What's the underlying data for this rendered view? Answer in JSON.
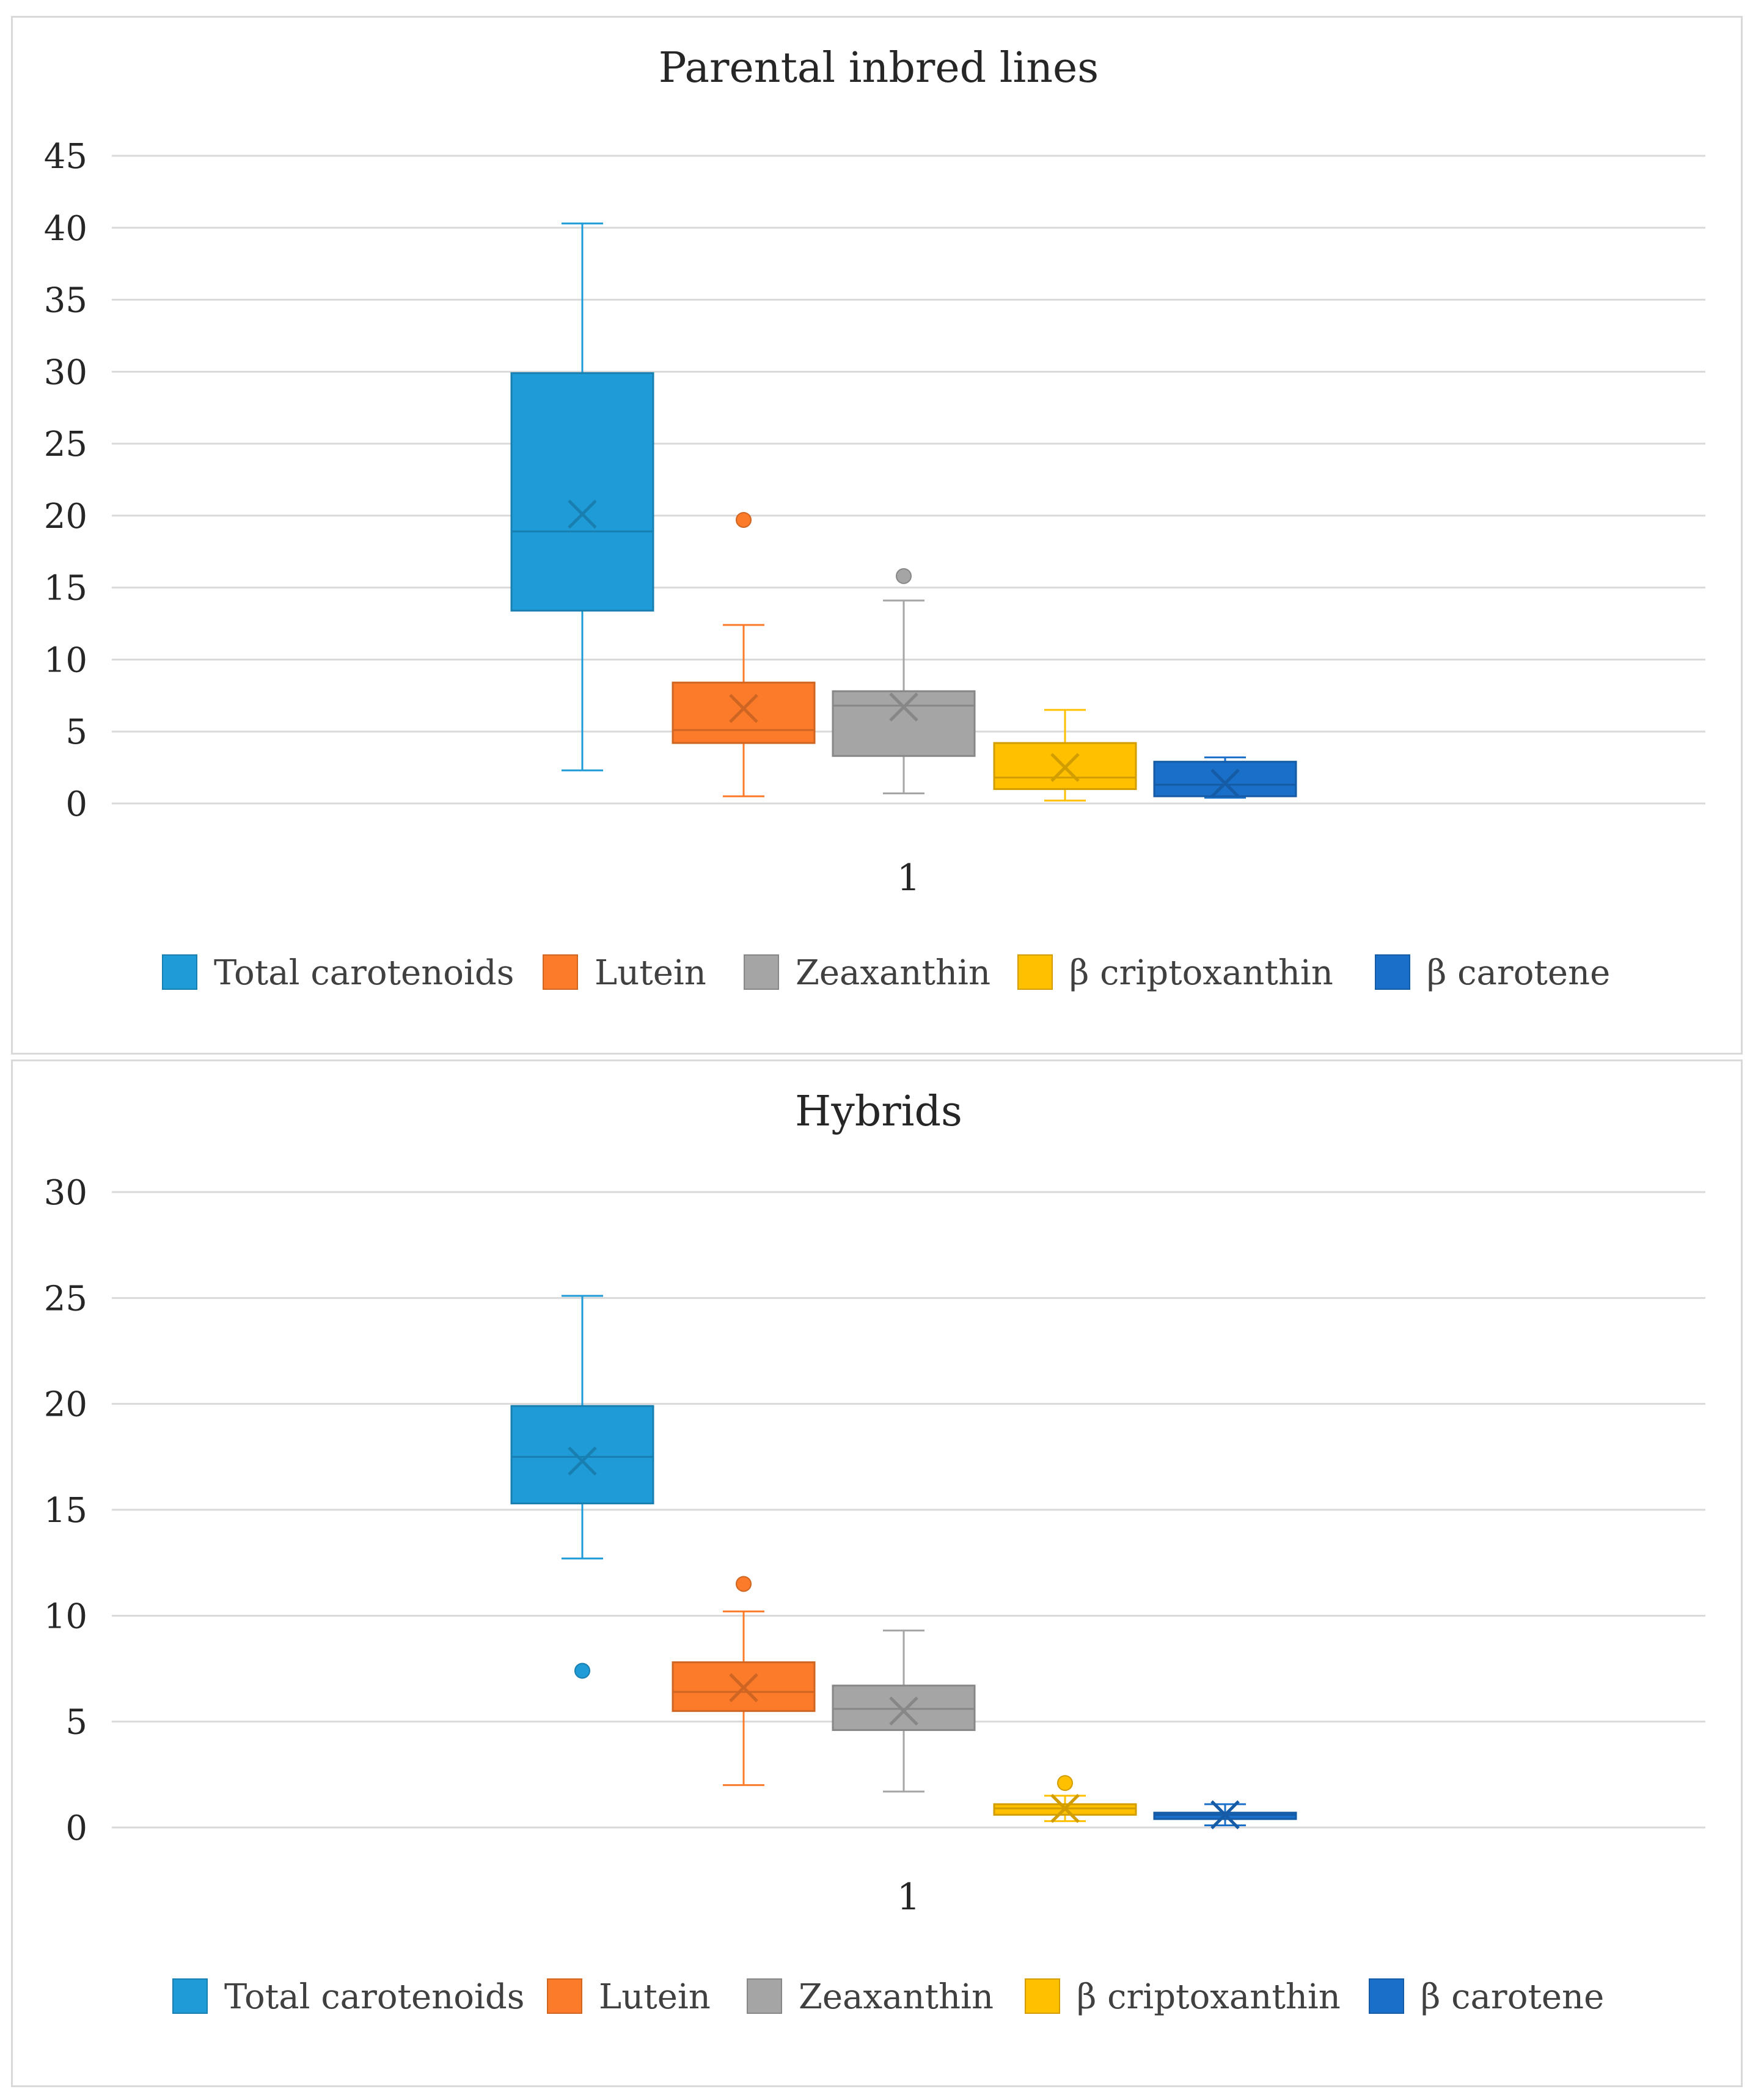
{
  "chart_data": [
    {
      "type": "box",
      "title": "Parental inbred lines",
      "category": "1",
      "ylim": [
        0,
        45
      ],
      "yticks": [
        0,
        5,
        10,
        15,
        20,
        25,
        30,
        35,
        40,
        45
      ],
      "grid": true,
      "legend_position": "bottom",
      "series": [
        {
          "name": "Total carotenoids",
          "color": "#1f9bd7",
          "min": 2.3,
          "q1": 13.4,
          "median": 18.9,
          "q3": 29.9,
          "max": 40.3,
          "mean": 20.1,
          "outliers": []
        },
        {
          "name": "Lutein",
          "color": "#fb7b2a",
          "min": 0.5,
          "q1": 4.2,
          "median": 5.1,
          "q3": 8.4,
          "max": 12.4,
          "mean": 6.6,
          "outliers": [
            19.7
          ]
        },
        {
          "name": "Zeaxanthin",
          "color": "#a5a5a5",
          "min": 0.7,
          "q1": 3.3,
          "median": 6.8,
          "q3": 7.8,
          "max": 14.1,
          "mean": 6.7,
          "outliers": [
            15.8
          ]
        },
        {
          "name": "β criptoxanthin",
          "color": "#ffc000",
          "min": 0.2,
          "q1": 1.0,
          "median": 1.8,
          "q3": 4.2,
          "max": 6.5,
          "mean": 2.5,
          "outliers": []
        },
        {
          "name": "β carotene",
          "color": "#1a6fc9",
          "min": 0.4,
          "q1": 0.5,
          "median": 1.3,
          "q3": 2.9,
          "max": 3.2,
          "mean": 1.4,
          "outliers": []
        }
      ]
    },
    {
      "type": "box",
      "title": "Hybrids",
      "category": "1",
      "ylim": [
        0,
        30
      ],
      "yticks": [
        0,
        5,
        10,
        15,
        20,
        25,
        30
      ],
      "grid": true,
      "legend_position": "bottom",
      "series": [
        {
          "name": "Total carotenoids",
          "color": "#1f9bd7",
          "min": 12.7,
          "q1": 15.3,
          "median": 17.5,
          "q3": 19.9,
          "max": 25.1,
          "mean": 17.3,
          "outliers": [
            7.4
          ]
        },
        {
          "name": "Lutein",
          "color": "#fb7b2a",
          "min": 2.0,
          "q1": 5.5,
          "median": 6.4,
          "q3": 7.8,
          "max": 10.2,
          "mean": 6.6,
          "outliers": [
            11.5
          ]
        },
        {
          "name": "Zeaxanthin",
          "color": "#a5a5a5",
          "min": 1.7,
          "q1": 4.6,
          "median": 5.6,
          "q3": 6.7,
          "max": 9.3,
          "mean": 5.5,
          "outliers": []
        },
        {
          "name": "β criptoxanthin",
          "color": "#ffc000",
          "min": 0.3,
          "q1": 0.6,
          "median": 0.9,
          "q3": 1.1,
          "max": 1.5,
          "mean": 0.9,
          "outliers": [
            2.1
          ]
        },
        {
          "name": "β carotene",
          "color": "#1a6fc9",
          "min": 0.1,
          "q1": 0.4,
          "median": 0.6,
          "q3": 0.7,
          "max": 1.1,
          "mean": 0.6,
          "outliers": []
        }
      ]
    }
  ]
}
